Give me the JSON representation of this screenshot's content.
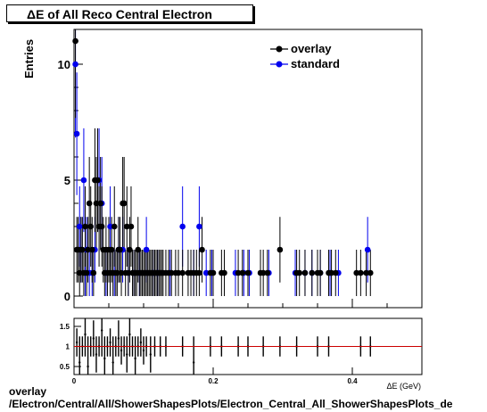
{
  "title": "ΔE of All Reco Central Electron",
  "caption_line1": "overlay",
  "caption_line2": "/Electron/Central/All/ShowerShapesPlots/Electron_Central_All_ShowerShapesPlots_de",
  "colors": {
    "overlay": "#000000",
    "standard": "#0000ee",
    "ratio_line": "#cc0000"
  },
  "chart_data": [
    {
      "type": "scatter",
      "title": "ΔE of All Reco Central Electron",
      "ylabel": "Entries",
      "xlabel": "ΔE (GeV)",
      "xlim": [
        0,
        0.5
      ],
      "ylim": [
        -0.5,
        11.5
      ],
      "yticks": [
        0,
        5,
        10
      ],
      "xticks": [
        0,
        0.2,
        0.4
      ],
      "legend": "top-right",
      "series": [
        {
          "name": "overlay",
          "x": [
            0.002,
            0.004,
            0.006,
            0.008,
            0.01,
            0.012,
            0.014,
            0.016,
            0.018,
            0.02,
            0.022,
            0.024,
            0.026,
            0.028,
            0.03,
            0.032,
            0.034,
            0.036,
            0.038,
            0.04,
            0.042,
            0.044,
            0.046,
            0.048,
            0.05,
            0.052,
            0.054,
            0.056,
            0.058,
            0.06,
            0.062,
            0.064,
            0.066,
            0.068,
            0.07,
            0.072,
            0.074,
            0.076,
            0.078,
            0.08,
            0.082,
            0.084,
            0.086,
            0.088,
            0.09,
            0.092,
            0.094,
            0.096,
            0.098,
            0.1,
            0.102,
            0.104,
            0.106,
            0.108,
            0.11,
            0.112,
            0.114,
            0.116,
            0.118,
            0.12,
            0.122,
            0.124,
            0.126,
            0.128,
            0.132,
            0.136,
            0.14,
            0.146,
            0.15,
            0.156,
            0.164,
            0.168,
            0.172,
            0.176,
            0.18,
            0.184,
            0.196,
            0.2,
            0.212,
            0.216,
            0.236,
            0.242,
            0.25,
            0.268,
            0.272,
            0.278,
            0.296,
            0.32,
            0.324,
            0.332,
            0.342,
            0.35,
            0.354,
            0.366,
            0.37,
            0.376,
            0.406,
            0.412,
            0.42,
            0.426
          ],
          "y": [
            11,
            2,
            2,
            1,
            2,
            2,
            1,
            3,
            1,
            2,
            4,
            3,
            2,
            1,
            5,
            4,
            5,
            3,
            4,
            3,
            2,
            1,
            2,
            1,
            2,
            1,
            2,
            1,
            3,
            1,
            1,
            2,
            2,
            1,
            4,
            4,
            1,
            3,
            1,
            2,
            3,
            1,
            1,
            1,
            1,
            2,
            1,
            1,
            1,
            1,
            1,
            1,
            1,
            1,
            1,
            1,
            1,
            1,
            1,
            1,
            1,
            1,
            1,
            1,
            1,
            1,
            1,
            1,
            1,
            1,
            1,
            1,
            1,
            1,
            1,
            2,
            1,
            1,
            1,
            1,
            1,
            1,
            1,
            1,
            1,
            1,
            2,
            1,
            1,
            1,
            1,
            1,
            1,
            1,
            1,
            1,
            1,
            1,
            1,
            1
          ]
        },
        {
          "name": "standard",
          "x": [
            0.002,
            0.004,
            0.008,
            0.01,
            0.014,
            0.016,
            0.018,
            0.022,
            0.026,
            0.03,
            0.036,
            0.04,
            0.046,
            0.052,
            0.058,
            0.064,
            0.07,
            0.078,
            0.086,
            0.094,
            0.104,
            0.114,
            0.12,
            0.138,
            0.156,
            0.172,
            0.18,
            0.19,
            0.198,
            0.232,
            0.244,
            0.252,
            0.28,
            0.318,
            0.332,
            0.342,
            0.354,
            0.368,
            0.38,
            0.422
          ],
          "y": [
            10,
            7,
            3,
            2,
            5,
            1,
            2,
            1,
            1,
            2,
            5,
            4,
            1,
            3,
            1,
            2,
            2,
            1,
            1,
            1,
            2,
            1,
            1,
            1,
            3,
            1,
            3,
            1,
            1,
            1,
            1,
            1,
            1,
            1,
            1,
            1,
            1,
            1,
            1,
            2
          ]
        }
      ]
    },
    {
      "type": "scatter",
      "title": "",
      "xlabel": "",
      "ylabel": "",
      "xlim": [
        0,
        0.5
      ],
      "ylim": [
        0.3,
        1.7
      ],
      "yticks": [
        0.5,
        1,
        1.5
      ],
      "xticks": [
        0,
        0.2,
        0.4
      ],
      "reference_line": 1,
      "series": [
        {
          "name": "",
          "x": [
            0.004,
            0.008,
            0.012,
            0.016,
            0.02,
            0.024,
            0.028,
            0.032,
            0.036,
            0.04,
            0.044,
            0.048,
            0.052,
            0.056,
            0.06,
            0.064,
            0.068,
            0.072,
            0.076,
            0.08,
            0.084,
            0.088,
            0.092,
            0.096,
            0.1,
            0.104,
            0.11,
            0.116,
            0.124,
            0.132,
            0.156,
            0.172,
            0.196,
            0.212,
            0.236,
            0.25,
            0.272,
            0.296,
            0.32,
            0.35,
            0.366,
            0.412,
            0.426
          ],
          "y": [
            1.1,
            0.6,
            1.0,
            1.3,
            0.5,
            1.0,
            1.2,
            0.8,
            1.0,
            1.4,
            0.7,
            1.0,
            1.1,
            0.6,
            1.0,
            1.2,
            0.9,
            1.0,
            0.8,
            1.3,
            1.0,
            0.7,
            1.0,
            1.1,
            0.9,
            1.0,
            0.8,
            1.0,
            1.0,
            1.0,
            1.0,
            0.6,
            1.0,
            1.0,
            1.0,
            1.0,
            1.0,
            1.0,
            1.0,
            1.0,
            1.0,
            1.0,
            1.0
          ]
        }
      ]
    }
  ]
}
